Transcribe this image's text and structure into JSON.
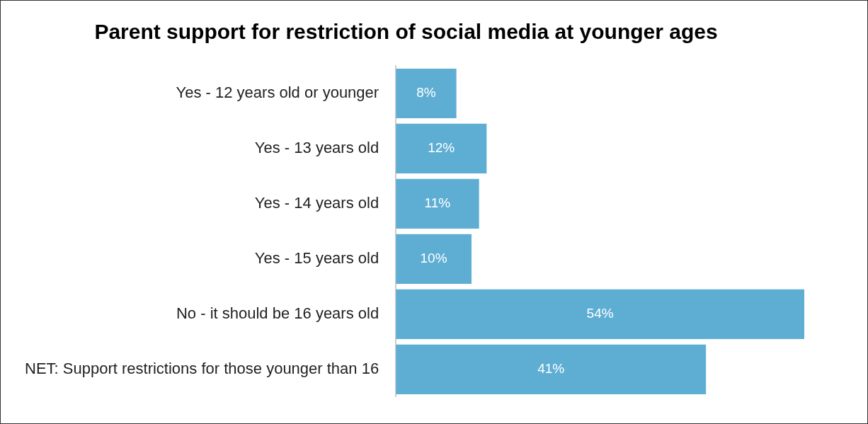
{
  "chart_data": {
    "type": "bar",
    "orientation": "horizontal",
    "title": "Parent support for restriction of social media at younger ages",
    "categories": [
      "Yes - 12 years old or younger",
      "Yes - 13 years old",
      "Yes - 14 years old",
      "Yes - 15 years old",
      "No - it should be 16 years old",
      "NET: Support restrictions for those younger than 16"
    ],
    "values": [
      8,
      12,
      11,
      10,
      54,
      41
    ],
    "value_labels": [
      "8%",
      "12%",
      "11%",
      "10%",
      "54%",
      "41%"
    ],
    "color": "#5eaed4"
  }
}
